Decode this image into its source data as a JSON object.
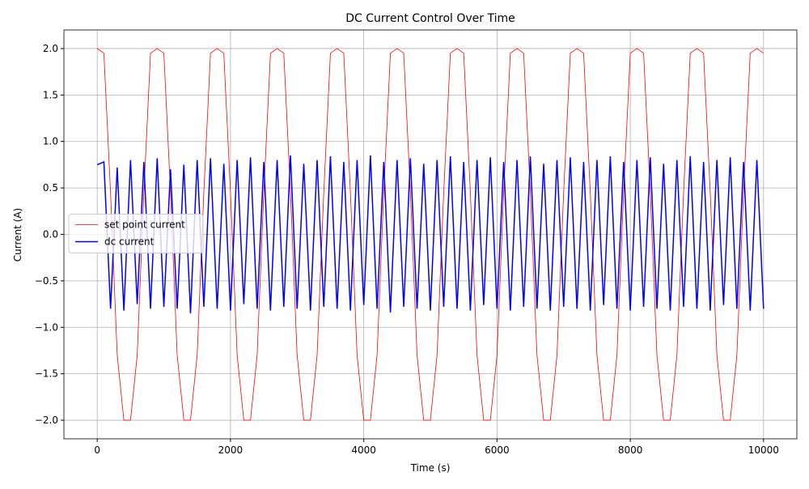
{
  "chart_data": {
    "type": "line",
    "title": "DC Current Control Over Time",
    "xlabel": "Time (s)",
    "ylabel": "Current (A)",
    "x": [
      0,
      100,
      200,
      300,
      400,
      500,
      600,
      700,
      800,
      900,
      1000,
      1100,
      1200,
      1300,
      1400,
      1500,
      1600,
      1700,
      1800,
      1900,
      2000,
      2100,
      2200,
      2300,
      2400,
      2500,
      2600,
      2700,
      2800,
      2900,
      3000,
      3100,
      3200,
      3300,
      3400,
      3500,
      3600,
      3700,
      3800,
      3900,
      4000,
      4100,
      4200,
      4300,
      4400,
      4500,
      4600,
      4700,
      4800,
      4900,
      5000,
      5100,
      5200,
      5300,
      5400,
      5500,
      5600,
      5700,
      5800,
      5900,
      6000,
      6100,
      6200,
      6300,
      6400,
      6500,
      6600,
      6700,
      6800,
      6900,
      7000,
      7100,
      7200,
      7300,
      7400,
      7500,
      7600,
      7700,
      7800,
      7900,
      8000,
      8100,
      8200,
      8300,
      8400,
      8500,
      8600,
      8700,
      8800,
      8900,
      9000,
      9100,
      9200,
      9300,
      9400,
      9500,
      9600,
      9700,
      9800,
      9900,
      10000
    ],
    "series": [
      {
        "name": "set point current",
        "color": "#ff0000",
        "width": 0.8,
        "values": [
          2,
          1.95,
          0.45,
          -1.3,
          -2,
          -2,
          -1.3,
          0.45,
          1.95,
          2,
          1.95,
          0.45,
          -1.3,
          -2,
          -2,
          -1.3,
          0.45,
          1.95,
          2,
          1.95,
          0.45,
          -1.3,
          -2,
          -2,
          -1.3,
          0.45,
          1.95,
          2,
          1.95,
          0.45,
          -1.3,
          -2,
          -2,
          -1.3,
          0.45,
          1.95,
          2,
          1.95,
          0.45,
          -1.3,
          -2,
          -2,
          -1.3,
          0.45,
          1.95,
          2,
          1.95,
          0.45,
          -1.3,
          -2,
          -2,
          -1.3,
          0.45,
          1.95,
          2,
          1.95,
          0.45,
          -1.3,
          -2,
          -2,
          -1.3,
          0.45,
          1.95,
          2,
          1.95,
          0.45,
          -1.3,
          -2,
          -2,
          -1.3,
          0.45,
          1.95,
          2,
          1.95,
          0.45,
          -1.3,
          -2,
          -2,
          -1.3,
          0.45,
          1.95,
          2,
          1.95,
          0.45,
          -1.3,
          -2,
          -2,
          -1.3,
          0.45,
          1.95,
          2,
          1.95,
          0.45,
          -1.3,
          -2,
          -2,
          -1.3,
          0.45,
          1.95,
          2,
          1.95
        ]
      },
      {
        "name": "dc current",
        "color": "#0000ff",
        "width": 1.5,
        "values": [
          0.75,
          0.78,
          -0.8,
          0.72,
          -0.82,
          0.8,
          -0.75,
          0.78,
          -0.8,
          0.82,
          -0.78,
          0.7,
          -0.8,
          0.75,
          -0.85,
          0.8,
          -0.78,
          0.82,
          -0.8,
          0.76,
          -0.82,
          0.8,
          -0.75,
          0.83,
          -0.8,
          0.78,
          -0.82,
          0.8,
          -0.78,
          0.85,
          -0.8,
          0.76,
          -0.82,
          0.8,
          -0.78,
          0.84,
          -0.8,
          0.78,
          -0.82,
          0.8,
          -0.76,
          0.85,
          -0.8,
          0.78,
          -0.84,
          0.8,
          -0.78,
          0.82,
          -0.8,
          0.76,
          -0.82,
          0.8,
          -0.78,
          0.84,
          -0.8,
          0.78,
          -0.82,
          0.8,
          -0.76,
          0.83,
          -0.8,
          0.78,
          -0.82,
          0.8,
          -0.78,
          0.84,
          -0.8,
          0.76,
          -0.82,
          0.8,
          -0.78,
          0.83,
          -0.8,
          0.78,
          -0.82,
          0.8,
          -0.76,
          0.84,
          -0.8,
          0.78,
          -0.82,
          0.8,
          -0.78,
          0.83,
          -0.8,
          0.76,
          -0.82,
          0.8,
          -0.78,
          0.84,
          -0.8,
          0.78,
          -0.82,
          0.8,
          -0.76,
          0.83,
          -0.8,
          0.78,
          -0.82,
          0.8,
          -0.8
        ]
      }
    ],
    "xlim": [
      -500,
      10500
    ],
    "ylim": [
      -2.2,
      2.2
    ],
    "xticks": [
      0,
      2000,
      4000,
      6000,
      8000,
      10000
    ],
    "yticks": [
      {
        "value": -2,
        "label": "−2.0"
      },
      {
        "value": -1.5,
        "label": "−1.5"
      },
      {
        "value": -1,
        "label": "−1.0"
      },
      {
        "value": -0.5,
        "label": "−0.5"
      },
      {
        "value": 0,
        "label": "0.0"
      },
      {
        "value": 0.5,
        "label": "0.5"
      },
      {
        "value": 1,
        "label": "1.0"
      },
      {
        "value": 1.5,
        "label": "1.5"
      },
      {
        "value": 2,
        "label": "2.0"
      }
    ],
    "grid": true,
    "legend": "center left"
  }
}
